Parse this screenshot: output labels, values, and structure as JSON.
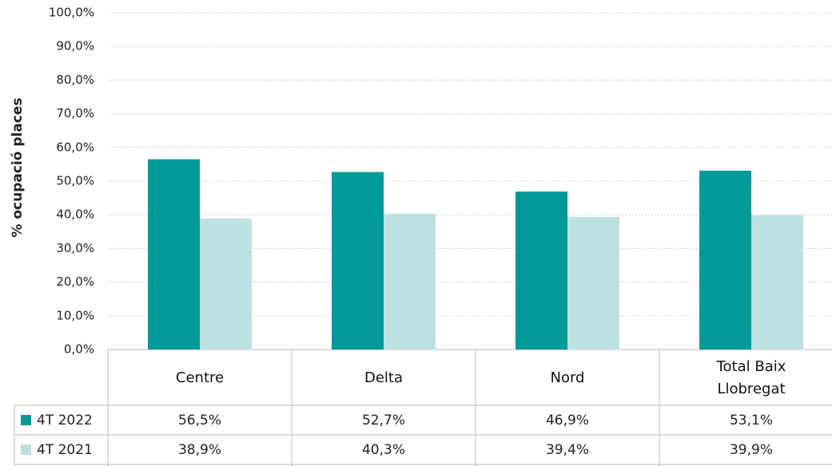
{
  "chart_data": {
    "type": "bar",
    "y_label": "% ocupació places",
    "categories": [
      "Centre",
      "Delta",
      "Nord",
      "Total Baix Llobregat"
    ],
    "series": [
      {
        "name": "4T 2022",
        "color": "#009999",
        "values": [
          56.5,
          52.7,
          46.9,
          53.1
        ],
        "value_labels": [
          "56,5%",
          "52,7%",
          "46,9%",
          "53,1%"
        ]
      },
      {
        "name": "4T 2021",
        "color": "#bde0e0",
        "values": [
          38.9,
          40.3,
          39.4,
          39.9
        ],
        "value_labels": [
          "38,9%",
          "40,3%",
          "39,4%",
          "39,9%"
        ]
      }
    ],
    "ylim": [
      0,
      100
    ],
    "yticks": [
      {
        "value": 0,
        "label": "0,0%"
      },
      {
        "value": 10,
        "label": "10,0%"
      },
      {
        "value": 20,
        "label": "20,0%"
      },
      {
        "value": 30,
        "label": "30,0%"
      },
      {
        "value": 40,
        "label": "40,0%"
      },
      {
        "value": 50,
        "label": "50,0%"
      },
      {
        "value": 60,
        "label": "60,0%"
      },
      {
        "value": 70,
        "label": "70,0%"
      },
      {
        "value": 80,
        "label": "80,0%"
      },
      {
        "value": 90,
        "label": "90,0%"
      },
      {
        "value": 100,
        "label": "100,0%"
      }
    ],
    "grid": true
  }
}
